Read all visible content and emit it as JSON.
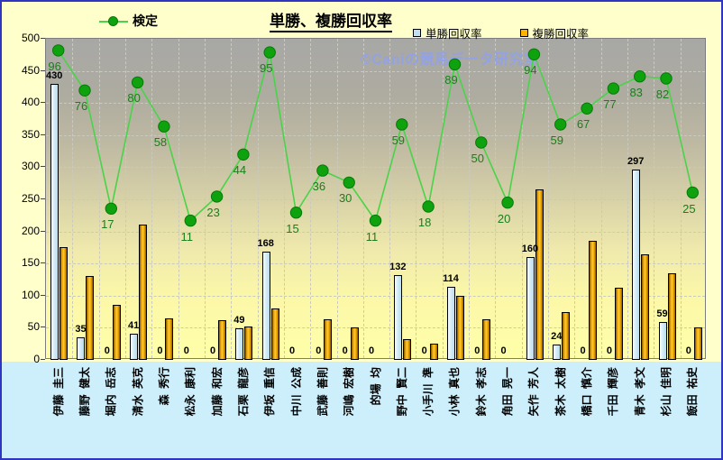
{
  "title": "単勝、複勝回収率",
  "watermark": "©Caniの競馬データ研究室",
  "legend": {
    "line_label": "検定",
    "bar1_label": "単勝回収率",
    "bar2_label": "複勝回収率"
  },
  "colors": {
    "bar1": "#cfe9f5",
    "bar2": "#f0a800",
    "line": "#4ad34a",
    "marker": "#0ea20e",
    "point_label": "#1b7e1b",
    "background": "#ffffcc",
    "names_strip": "#cdeffb",
    "frame": "#2f35c0"
  },
  "chart_data": {
    "type": "bar",
    "subtype": "combo-bar-line",
    "title": "単勝、複勝回収率",
    "categories": [
      "伊藤 圭三",
      "藤野 健太",
      "堀内 岳志",
      "清水 英克",
      "森 秀行",
      "松永 康利",
      "加藤 和宏",
      "石栗 龍彦",
      "伊坂 重信",
      "中川 公成",
      "武藤 善則",
      "河嶋 宏樹",
      "的場 均",
      "野中 賢二",
      "小手川 準",
      "小林 真也",
      "鈴木 孝志",
      "角田 晃一",
      "矢作 芳人",
      "茶木 太樹",
      "橋口 慎介",
      "千田 輝彦",
      "青木 孝文",
      "杉山 佳明",
      "飯田 祐史"
    ],
    "series": [
      {
        "name": "単勝回収率",
        "type": "bar",
        "color": "#cfe9f5",
        "values": [
          430,
          35,
          0,
          41,
          0,
          0,
          0,
          49,
          168,
          0,
          0,
          0,
          0,
          132,
          0,
          114,
          0,
          0,
          160,
          24,
          0,
          0,
          297,
          59,
          0
        ],
        "labels_shown": true
      },
      {
        "name": "複勝回収率",
        "type": "bar",
        "color": "#f0a800",
        "values": [
          175,
          130,
          85,
          210,
          65,
          0,
          62,
          52,
          80,
          0,
          63,
          50,
          0,
          32,
          25,
          100,
          63,
          0,
          265,
          75,
          185,
          113,
          165,
          135,
          50
        ],
        "labels_shown": false
      },
      {
        "name": "検定",
        "type": "line",
        "color": "#4ad34a",
        "values": [
          96,
          76,
          17,
          80,
          58,
          11,
          23,
          44,
          95,
          15,
          36,
          30,
          11,
          59,
          18,
          89,
          50,
          20,
          94,
          59,
          67,
          77,
          83,
          82,
          25
        ],
        "labels_shown": true
      }
    ],
    "ylabel": "",
    "xlabel": "",
    "ylim": [
      0,
      500
    ],
    "yticks": [
      0,
      50,
      100,
      150,
      200,
      250,
      300,
      350,
      400,
      450,
      500
    ],
    "line_axis_ylim": [
      -58,
      102
    ],
    "grid": "dashed",
    "legend_position": "top"
  }
}
